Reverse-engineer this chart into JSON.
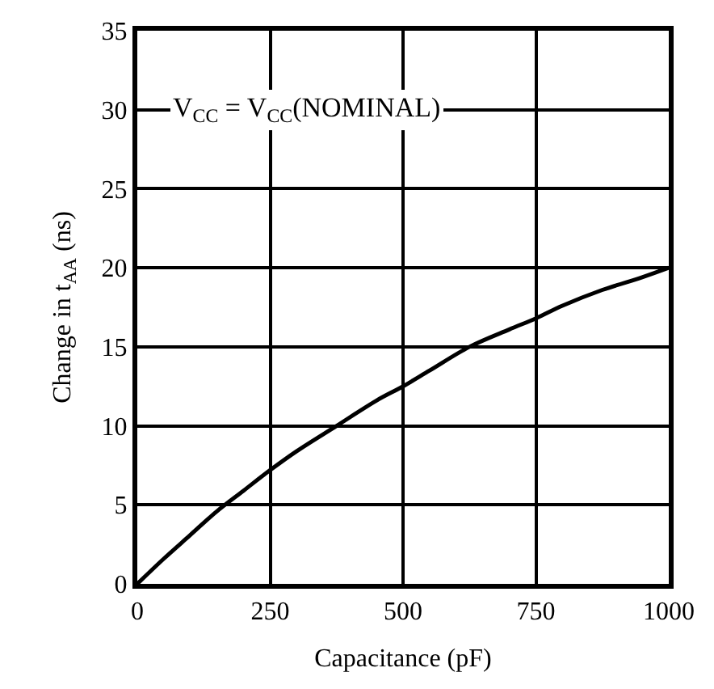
{
  "chart_data": {
    "type": "line",
    "xlabel": "Capacitance (pF)",
    "ylabel": "Change in t$_{AA}$ (ns)",
    "annotations": [
      "V$_{CC}$ = V$_{CC}$(NOMINAL)"
    ],
    "x": [
      0,
      50,
      100,
      150,
      200,
      250,
      300,
      375,
      450,
      500,
      550,
      625,
      700,
      750,
      800,
      875,
      950,
      1000
    ],
    "series": [
      {
        "color": "#000000",
        "values": [
          0,
          1.6,
          3.1,
          4.6,
          5.9,
          7.2,
          8.4,
          10,
          11.6,
          12.5,
          13.5,
          15,
          16.1,
          16.8,
          17.6,
          18.6,
          19.4,
          20
        ]
      }
    ],
    "xlim": [
      0,
      1000
    ],
    "ylim": [
      0,
      35
    ],
    "xticks": [
      0,
      250,
      500,
      750,
      1000
    ],
    "yticks": [
      0,
      5,
      10,
      15,
      20,
      25,
      30,
      35
    ],
    "grid": true,
    "marker": "none",
    "line_style": "solid"
  }
}
